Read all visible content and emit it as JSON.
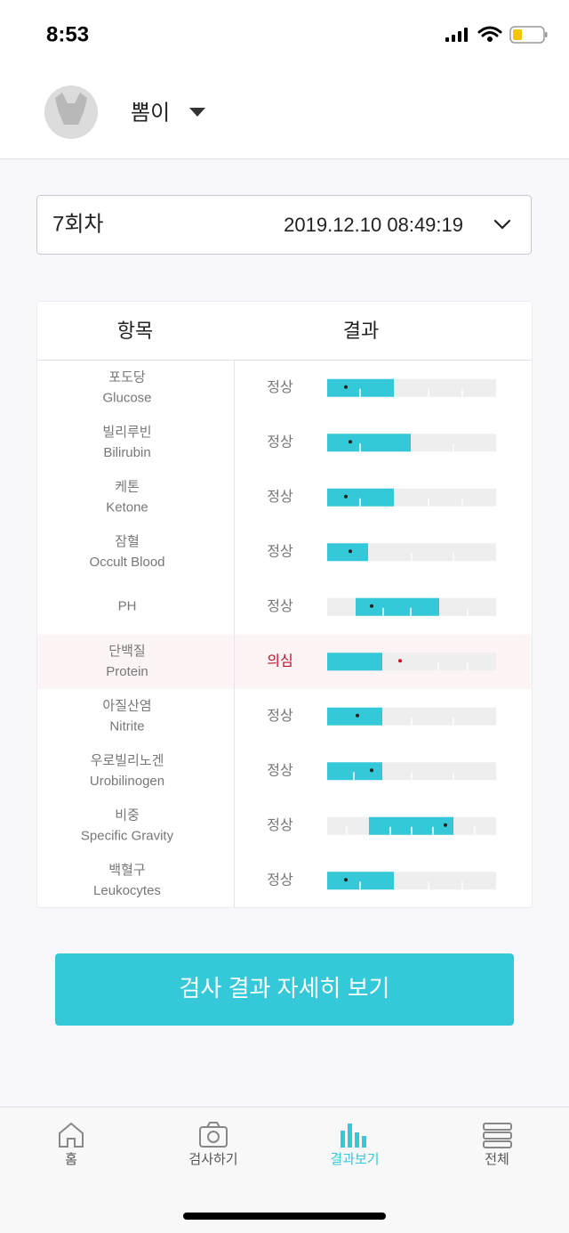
{
  "status_bar": {
    "time": "8:53"
  },
  "profile": {
    "name": "뽐이"
  },
  "session": {
    "round": "7회차",
    "datetime": "2019.12.10 08:49:19"
  },
  "table": {
    "headers": [
      "항목",
      "결과"
    ],
    "rows": [
      {
        "name_ko": "포도당",
        "name_en": "Glucose",
        "result": "정상"
      },
      {
        "name_ko": "빌리루빈",
        "name_en": "Bilirubin",
        "result": "정상"
      },
      {
        "name_ko": "케톤",
        "name_en": "Ketone",
        "result": "정상"
      },
      {
        "name_ko": "잠혈",
        "name_en": "Occult Blood",
        "result": "정상"
      },
      {
        "name_en": "PH",
        "result": "정상"
      },
      {
        "name_ko": "단백질",
        "name_en": "Protein",
        "result": "의심"
      },
      {
        "name_ko": "아질산염",
        "name_en": "Nitrite",
        "result": "정상"
      },
      {
        "name_ko": "우로빌리노겐",
        "name_en": "Urobilinogen",
        "result": "정상"
      },
      {
        "name_ko": "비중",
        "name_en": "Specific Gravity",
        "result": "정상"
      },
      {
        "name_ko": "백혈구",
        "name_en": "Leukocytes",
        "result": "정상"
      }
    ]
  },
  "button": {
    "label": "검사 결과 자세히 보기"
  },
  "tabs": [
    "홈",
    "검사하기",
    "결과보기",
    "전체"
  ]
}
